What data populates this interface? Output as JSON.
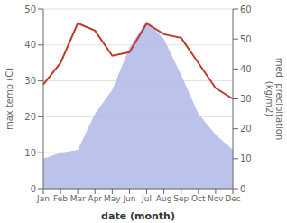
{
  "chart_data": {
    "type": "line",
    "categories": [
      "Jan",
      "Feb",
      "Mar",
      "Apr",
      "May",
      "Jun",
      "Jul",
      "Aug",
      "Sep",
      "Oct",
      "Nov",
      "Dec"
    ],
    "series": [
      {
        "type": "area",
        "axis": "y2",
        "color": "#b0b8e8",
        "values": [
          10,
          12,
          13,
          25,
          33,
          47,
          56,
          50,
          38,
          25,
          18,
          13
        ]
      },
      {
        "type": "line",
        "color": "#c0392b",
        "values": [
          29,
          35,
          46,
          44,
          37,
          38,
          46,
          43,
          42,
          35,
          28,
          25
        ]
      }
    ],
    "xlabel": "date (month)",
    "ylabel": "max temp (C)",
    "y2label": "med. precipitation\n(kg/m2)",
    "ylim": [
      0,
      50
    ],
    "yticks": [
      0,
      10,
      20,
      30,
      40,
      50
    ],
    "y2lim": [
      0,
      60
    ],
    "y2ticks": [
      0,
      10,
      20,
      30,
      40,
      50,
      60
    ],
    "grid": true
  }
}
